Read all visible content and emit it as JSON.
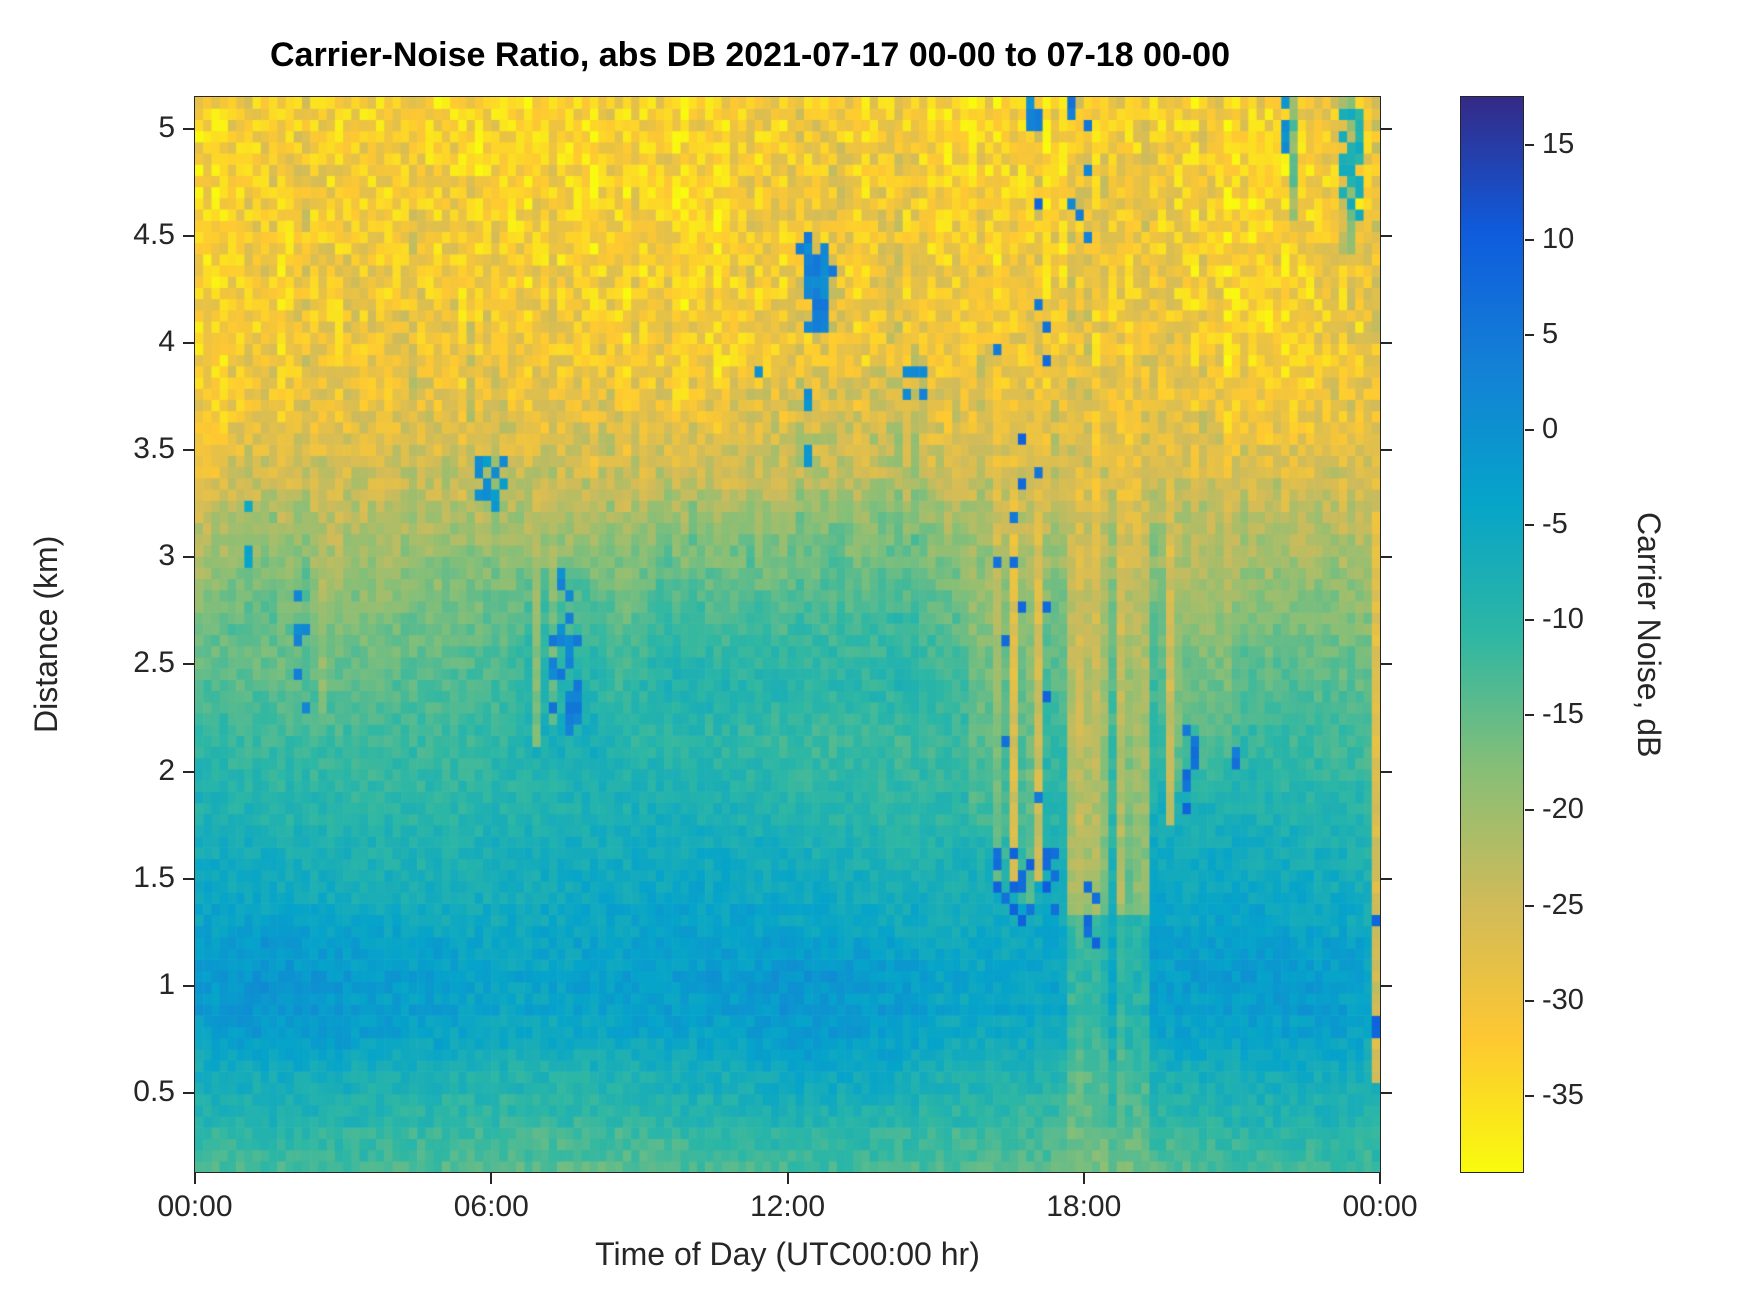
{
  "chart_data": {
    "type": "heatmap",
    "title": "Carrier-Noise Ratio, abs DB 2021-07-17 00-00 to 07-18 00-00",
    "xlabel": "Time of Day (UTC00:00 hr)",
    "ylabel": "Distance (km)",
    "x_range_hours": [
      0,
      24
    ],
    "y_range_km": [
      0.13,
      5.15
    ],
    "x_ticks": [
      {
        "label": "00:00",
        "hour": 0
      },
      {
        "label": "06:00",
        "hour": 6
      },
      {
        "label": "12:00",
        "hour": 12
      },
      {
        "label": "18:00",
        "hour": 18
      },
      {
        "label": "00:00",
        "hour": 24
      }
    ],
    "y_ticks": [
      {
        "label": "0.5",
        "km": 0.5
      },
      {
        "label": "1",
        "km": 1
      },
      {
        "label": "1.5",
        "km": 1.5
      },
      {
        "label": "2",
        "km": 2
      },
      {
        "label": "2.5",
        "km": 2.5
      },
      {
        "label": "3",
        "km": 3
      },
      {
        "label": "3.5",
        "km": 3.5
      },
      {
        "label": "4",
        "km": 4
      },
      {
        "label": "4.5",
        "km": 4.5
      },
      {
        "label": "5",
        "km": 5
      }
    ],
    "colorbar": {
      "label": "Carrier Noise, dB",
      "ticks": [
        {
          "label": "15",
          "v": 15
        },
        {
          "label": "10",
          "v": 10
        },
        {
          "label": "5",
          "v": 5
        },
        {
          "label": "0",
          "v": 0
        },
        {
          "label": "-5",
          "v": -5
        },
        {
          "label": "-10",
          "v": -10
        },
        {
          "label": "-15",
          "v": -15
        },
        {
          "label": "-20",
          "v": -20
        },
        {
          "label": "-25",
          "v": -25
        },
        {
          "label": "-30",
          "v": -30
        },
        {
          "label": "-35",
          "v": -35
        }
      ],
      "range": [
        -39,
        17.5
      ],
      "orientation": "high-at-top",
      "colormap": "parula-reversed",
      "stops": [
        "#352a87",
        "#0f5cdd",
        "#1481d6",
        "#06a4ca",
        "#2eb7a4",
        "#87bf77",
        "#d1bb59",
        "#fec832",
        "#f9fb0e"
      ]
    },
    "grid": {
      "n_time": 144,
      "n_range": 96
    },
    "base_profile": [
      [
        0.13,
        -13
      ],
      [
        0.3,
        -11
      ],
      [
        0.5,
        -8.5
      ],
      [
        0.7,
        -5.5
      ],
      [
        0.95,
        -3.2
      ],
      [
        1.2,
        -4
      ],
      [
        1.5,
        -6.5
      ],
      [
        1.8,
        -8.5
      ],
      [
        2.1,
        -10.5
      ],
      [
        2.5,
        -14
      ],
      [
        2.8,
        -17
      ],
      [
        3.1,
        -21
      ],
      [
        3.4,
        -25
      ],
      [
        3.7,
        -28.5
      ],
      [
        4.0,
        -30.5
      ],
      [
        4.5,
        -31.5
      ],
      [
        5.15,
        -32.5
      ]
    ],
    "deltas": [
      {
        "t": [
          8,
          16.2
        ],
        "km": [
          2.1,
          3.5
        ],
        "dB": 4.5
      },
      {
        "t": [
          9.5,
          15.5
        ],
        "km": [
          3.4,
          3.9
        ],
        "dB": 2
      },
      {
        "t": [
          6.3,
          8.6
        ],
        "km": [
          1.9,
          3.1
        ],
        "dB": 3
      },
      {
        "t": [
          0,
          6.5
        ],
        "km": [
          0.55,
          1.4
        ],
        "dB": 1.5
      },
      {
        "t": [
          11,
          15.2
        ],
        "km": [
          0.35,
          1.3
        ],
        "dB": 1.5
      },
      {
        "t": [
          0,
          2.6
        ],
        "km": [
          2.5,
          3.4
        ],
        "dB": 2.5
      },
      {
        "t": [
          20.5,
          23.4
        ],
        "km": [
          3.3,
          5.15
        ],
        "dB": -1.5
      },
      {
        "t": [
          15.6,
          16.2
        ],
        "km": [
          1.5,
          3.2
        ],
        "dB": -3
      },
      {
        "t": [
          19.4,
          21.3
        ],
        "km": [
          1.8,
          3.2
        ],
        "dB": -3
      }
    ],
    "disturbance": {
      "t": [
        17.55,
        19.35
      ],
      "km_split": 1.35,
      "upper_dB": -28,
      "lower_dB": -19,
      "mix": [
        0.15,
        0.85
      ]
    },
    "columns": [
      {
        "t": 16.32,
        "hw": 0.07,
        "km": [
          1.45,
          5.15
        ],
        "dB": -31,
        "mix": 0.85
      },
      {
        "t": 16.58,
        "hw": 0.06,
        "km": [
          1.5,
          5.15
        ],
        "dB": -30,
        "mix": 0.8
      },
      {
        "t": 16.84,
        "hw": 0.07,
        "km": [
          1.4,
          5.15
        ],
        "dB": -31,
        "mix": 0.85
      },
      {
        "t": 17.1,
        "hw": 0.06,
        "km": [
          1.5,
          5.15
        ],
        "dB": -30,
        "mix": 0.8
      },
      {
        "t": 17.34,
        "hw": 0.05,
        "km": [
          1.6,
          5.15
        ],
        "dB": -29,
        "mix": 0.75
      },
      {
        "t": 19.72,
        "hw": 0.06,
        "km": [
          1.75,
          5.15
        ],
        "dB": -30,
        "mix": 0.8
      },
      {
        "t": 19.98,
        "hw": 0.05,
        "km": [
          1.9,
          5.15
        ],
        "dB": -29,
        "mix": 0.75
      },
      {
        "t": 20.5,
        "hw": 0.05,
        "km": [
          2.5,
          5.15
        ],
        "dB": -28,
        "mix": 0.65
      },
      {
        "t": 23.9,
        "hw": 0.09,
        "km": [
          0.55,
          5.15
        ],
        "dB": -30,
        "mix": 0.85
      },
      {
        "t": 6.95,
        "hw": 0.05,
        "km": [
          2.1,
          3.65
        ],
        "dB": -27,
        "mix": 0.75
      },
      {
        "t": 7.22,
        "hw": 0.04,
        "km": [
          2.2,
          3.65
        ],
        "dB": -26,
        "mix": 0.6
      },
      {
        "t": 2.56,
        "hw": 0.04,
        "km": [
          2.3,
          3.15
        ],
        "dB": -24,
        "mix": 0.55
      },
      {
        "t": 1.65,
        "hw": 0.05,
        "km": [
          2.3,
          3.3
        ],
        "dB": -13,
        "mix": 0.7
      },
      {
        "t": 2.3,
        "hw": 0.05,
        "km": [
          2.15,
          3.0
        ],
        "dB": -11,
        "mix": 0.7
      },
      {
        "t": 23.35,
        "hw": 0.1,
        "km": [
          4.4,
          5.15
        ],
        "dB": -9,
        "mix": 0.8
      },
      {
        "t": 22.25,
        "hw": 0.06,
        "km": [
          4.55,
          5.15
        ],
        "dB": -12,
        "mix": 0.7
      }
    ],
    "speckles": [
      {
        "t": [
          12.3,
          12.8
        ],
        "km": [
          4.05,
          4.45
        ],
        "density": 0.88,
        "dB": 3
      },
      {
        "t": [
          12.2,
          12.95
        ],
        "km": [
          3.95,
          4.55
        ],
        "density": 0.18,
        "dB": 5
      },
      {
        "t": [
          12.38,
          12.52
        ],
        "km": [
          3.35,
          3.8
        ],
        "density": 0.55,
        "dB": 1
      },
      {
        "t": [
          14.4,
          14.75
        ],
        "km": [
          3.72,
          3.92
        ],
        "density": 0.7,
        "dB": 3
      },
      {
        "t": [
          5.75,
          6.3
        ],
        "km": [
          3.2,
          3.5
        ],
        "density": 0.55,
        "dB": 0
      },
      {
        "t": [
          7.25,
          7.85
        ],
        "km": [
          2.15,
          2.65
        ],
        "density": 0.45,
        "dB": 4
      },
      {
        "t": [
          7.3,
          7.6
        ],
        "km": [
          2.6,
          3.0
        ],
        "density": 0.2,
        "dB": 2
      },
      {
        "t": [
          2.05,
          2.4
        ],
        "km": [
          2.15,
          2.9
        ],
        "density": 0.3,
        "dB": 3
      },
      {
        "t": [
          1.0,
          1.2
        ],
        "km": [
          2.8,
          3.25
        ],
        "density": 0.25,
        "dB": -4
      },
      {
        "t": [
          16.2,
          17.45
        ],
        "km": [
          1.3,
          1.65
        ],
        "density": 0.3,
        "dB": 8
      },
      {
        "t": [
          16.25,
          17.4
        ],
        "km": [
          1.65,
          4.9
        ],
        "density": 0.05,
        "dB": 7
      },
      {
        "t": [
          17.9,
          18.35
        ],
        "km": [
          1.2,
          1.55
        ],
        "density": 0.3,
        "dB": 8
      },
      {
        "t": [
          19.8,
          20.25
        ],
        "km": [
          1.75,
          2.3
        ],
        "density": 0.3,
        "dB": 7
      },
      {
        "t": [
          21.0,
          21.15
        ],
        "km": [
          1.8,
          2.15
        ],
        "density": 0.3,
        "dB": 6
      },
      {
        "t": [
          23.78,
          24.0
        ],
        "km": [
          0.6,
          1.45
        ],
        "density": 0.35,
        "dB": 8
      },
      {
        "t": [
          23.15,
          23.6
        ],
        "km": [
          4.55,
          5.15
        ],
        "density": 0.5,
        "dB": -8
      },
      {
        "t": [
          22.0,
          22.15
        ],
        "km": [
          4.85,
          5.15
        ],
        "density": 0.4,
        "dB": 0
      },
      {
        "t": [
          11.4,
          11.55
        ],
        "km": [
          3.75,
          4.0
        ],
        "density": 0.3,
        "dB": 1
      },
      {
        "t": [
          17.7,
          18.2
        ],
        "km": [
          4.4,
          5.15
        ],
        "density": 0.12,
        "dB": 4
      },
      {
        "t": [
          16.9,
          17.1
        ],
        "km": [
          4.9,
          5.15
        ],
        "density": 0.3,
        "dB": 2
      }
    ],
    "noise": {
      "base": 2.2,
      "top_boost": 3.4,
      "boost_km": [
        2.6,
        4.3
      ],
      "col": 2.2,
      "col_km": [
        2.2,
        3.6
      ],
      "row": 1.2
    }
  }
}
